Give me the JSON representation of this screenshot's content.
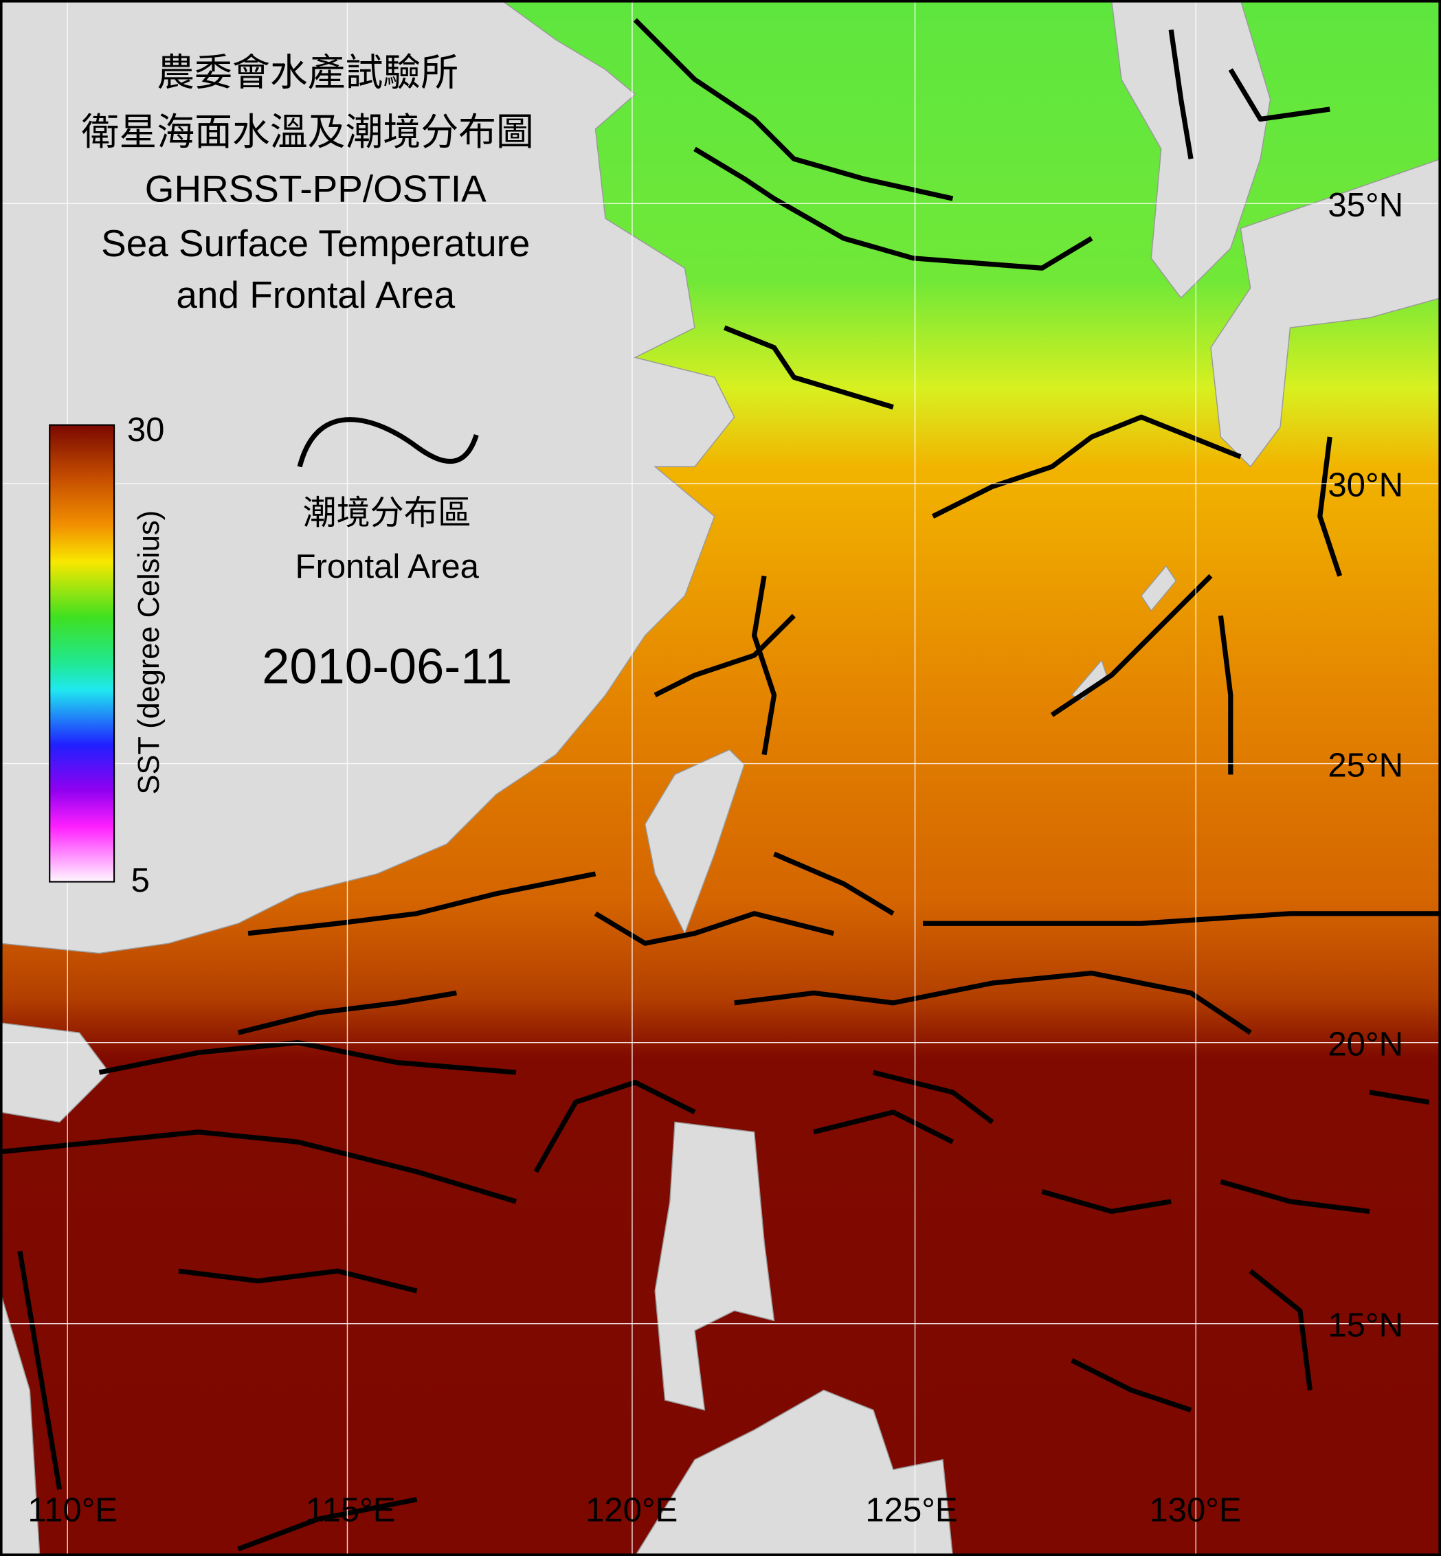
{
  "title_lines": [
    "農委會水產試驗所",
    "衛星海面水溫及潮境分布圖",
    "GHRSST-PP/OSTIA",
    "Sea Surface Temperature",
    "and Frontal Area"
  ],
  "colorbar": {
    "label": "SST (degree Celsius)",
    "ticks": [
      30,
      5
    ]
  },
  "legend": {
    "label_zh": "潮境分布區",
    "label_en": "Frontal Area"
  },
  "date": "2010-06-11",
  "lat_labels": [
    "35°N",
    "30°N",
    "25°N",
    "20°N",
    "15°N"
  ],
  "lon_labels": [
    "110°E",
    "115°E",
    "120°E",
    "125°E",
    "130°E"
  ]
}
